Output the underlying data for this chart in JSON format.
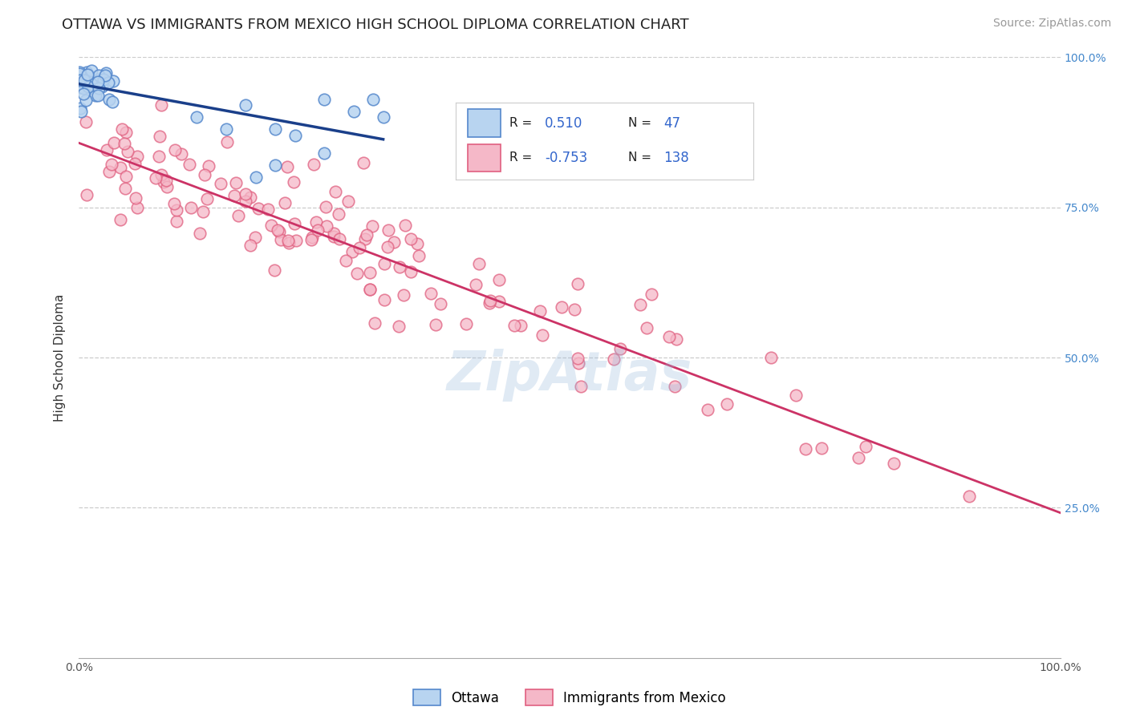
{
  "title": "OTTAWA VS IMMIGRANTS FROM MEXICO HIGH SCHOOL DIPLOMA CORRELATION CHART",
  "source_text": "Source: ZipAtlas.com",
  "ylabel": "High School Diploma",
  "watermark": "ZipAtlas",
  "xlim": [
    0.0,
    1.0
  ],
  "ylim": [
    0.0,
    1.0
  ],
  "y_tick_positions_right": [
    1.0,
    0.75,
    0.5,
    0.25
  ],
  "grid_color": "#cccccc",
  "background_color": "#ffffff",
  "ottawa_color": "#b8d4f0",
  "ottawa_edge_color": "#5588cc",
  "mexico_color": "#f5b8c8",
  "mexico_edge_color": "#e06080",
  "trend_blue_color": "#1a3f8a",
  "trend_pink_color": "#cc3366",
  "legend_r_blue": "0.510",
  "legend_n_blue": "47",
  "legend_r_pink": "-0.753",
  "legend_n_pink": "138",
  "legend_label_blue": "Ottawa",
  "legend_label_pink": "Immigrants from Mexico",
  "r_blue": 0.51,
  "n_blue": 47,
  "r_pink": -0.753,
  "n_pink": 138,
  "title_fontsize": 13,
  "axis_label_fontsize": 11,
  "tick_fontsize": 10,
  "source_fontsize": 10,
  "watermark_fontsize": 48,
  "watermark_color": "#99bbdd",
  "watermark_alpha": 0.3
}
